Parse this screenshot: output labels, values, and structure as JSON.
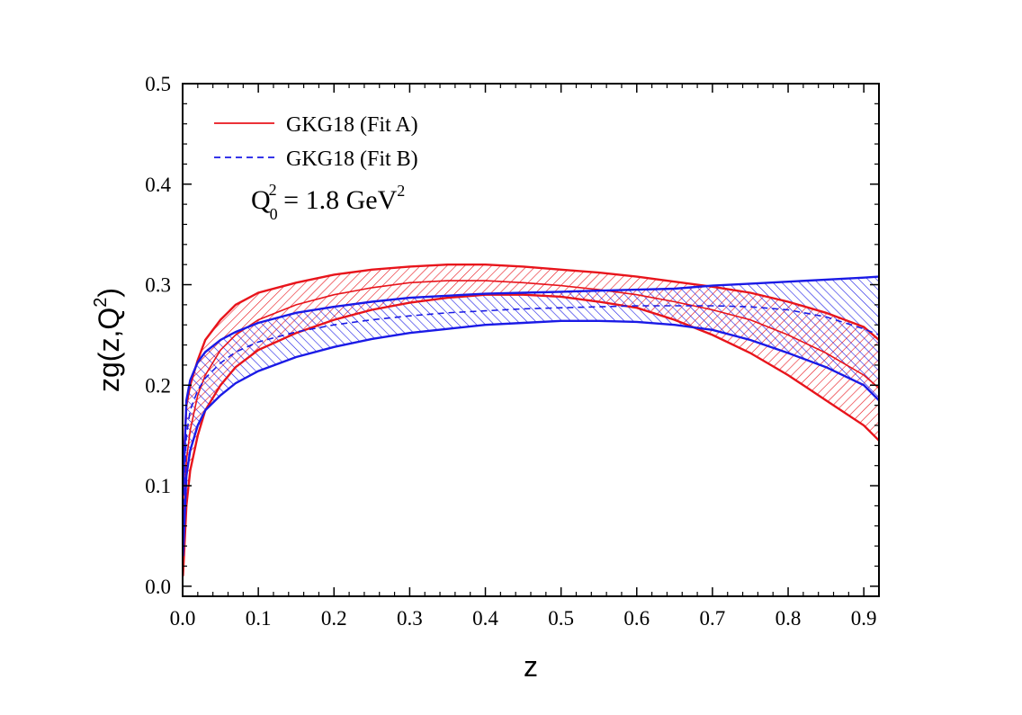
{
  "chart_data": {
    "type": "line",
    "title": "",
    "xlabel": "z",
    "ylabel": "zg(z,Q",
    "ylabel_sup": "2",
    "ylabel_close": ")",
    "xlim": [
      0.0,
      0.92
    ],
    "ylim": [
      -0.01,
      0.5
    ],
    "x_ticks": [
      "0.0",
      "0.1",
      "0.2",
      "0.3",
      "0.4",
      "0.5",
      "0.6",
      "0.7",
      "0.8",
      "0.9"
    ],
    "y_ticks": [
      "0.0",
      "0.1",
      "0.2",
      "0.3",
      "0.4",
      "0.5"
    ],
    "grid": false,
    "legend_position": "top-left",
    "annotation": {
      "q_main": "Q",
      "q_sub": "0",
      "q_sup": "2",
      "value": " = 1.8 GeV",
      "value_sup": "2"
    },
    "series": [
      {
        "name": "GKG18 (Fit A)",
        "color": "#e8141b",
        "style": "solid",
        "hatch": "forward",
        "x": [
          0.0005,
          0.005,
          0.01,
          0.02,
          0.03,
          0.05,
          0.07,
          0.1,
          0.15,
          0.2,
          0.25,
          0.3,
          0.35,
          0.4,
          0.45,
          0.5,
          0.55,
          0.6,
          0.65,
          0.7,
          0.75,
          0.8,
          0.85,
          0.9,
          0.92
        ],
        "values": [
          0.06,
          0.125,
          0.155,
          0.19,
          0.21,
          0.235,
          0.25,
          0.265,
          0.28,
          0.29,
          0.297,
          0.302,
          0.304,
          0.304,
          0.302,
          0.299,
          0.295,
          0.29,
          0.283,
          0.275,
          0.265,
          0.25,
          0.232,
          0.21,
          0.197
        ],
        "upper": [
          0.11,
          0.18,
          0.2,
          0.225,
          0.245,
          0.265,
          0.28,
          0.292,
          0.302,
          0.31,
          0.315,
          0.318,
          0.32,
          0.32,
          0.318,
          0.315,
          0.312,
          0.308,
          0.303,
          0.298,
          0.292,
          0.283,
          0.272,
          0.258,
          0.245
        ],
        "lower": [
          0.01,
          0.08,
          0.115,
          0.15,
          0.175,
          0.2,
          0.218,
          0.235,
          0.252,
          0.265,
          0.275,
          0.282,
          0.287,
          0.29,
          0.29,
          0.288,
          0.283,
          0.277,
          0.265,
          0.25,
          0.232,
          0.21,
          0.185,
          0.16,
          0.145
        ]
      },
      {
        "name": "GKG18 (Fit B)",
        "color": "#1a1ae6",
        "style": "dashed",
        "hatch": "backward",
        "x": [
          0.0005,
          0.005,
          0.01,
          0.02,
          0.03,
          0.05,
          0.07,
          0.1,
          0.15,
          0.2,
          0.25,
          0.3,
          0.35,
          0.4,
          0.45,
          0.5,
          0.55,
          0.6,
          0.65,
          0.7,
          0.75,
          0.8,
          0.85,
          0.9,
          0.92
        ],
        "values": [
          0.07,
          0.15,
          0.175,
          0.195,
          0.207,
          0.222,
          0.233,
          0.243,
          0.253,
          0.26,
          0.265,
          0.269,
          0.272,
          0.274,
          0.276,
          0.277,
          0.278,
          0.279,
          0.279,
          0.279,
          0.278,
          0.275,
          0.268,
          0.256,
          0.25
        ],
        "upper": [
          0.09,
          0.185,
          0.205,
          0.223,
          0.233,
          0.245,
          0.253,
          0.262,
          0.272,
          0.278,
          0.283,
          0.287,
          0.289,
          0.291,
          0.292,
          0.293,
          0.294,
          0.295,
          0.296,
          0.299,
          0.301,
          0.303,
          0.305,
          0.307,
          0.308
        ],
        "lower": [
          0.03,
          0.11,
          0.135,
          0.16,
          0.175,
          0.19,
          0.202,
          0.214,
          0.228,
          0.238,
          0.246,
          0.252,
          0.256,
          0.26,
          0.262,
          0.264,
          0.264,
          0.263,
          0.26,
          0.255,
          0.245,
          0.232,
          0.218,
          0.2,
          0.185
        ]
      }
    ]
  }
}
